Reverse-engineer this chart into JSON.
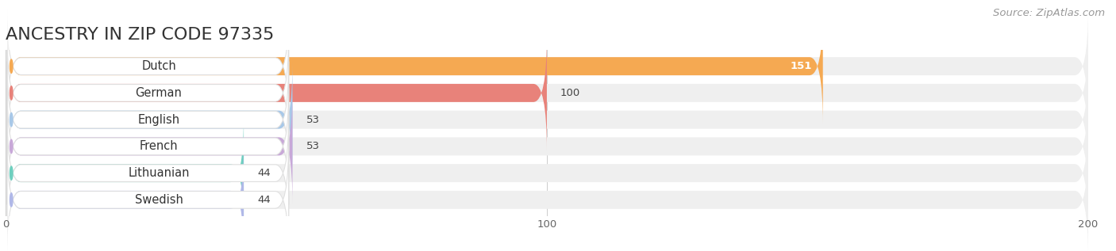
{
  "title": "ANCESTRY IN ZIP CODE 97335",
  "source": "Source: ZipAtlas.com",
  "categories": [
    "Dutch",
    "German",
    "English",
    "French",
    "Lithuanian",
    "Swedish"
  ],
  "values": [
    151,
    100,
    53,
    53,
    44,
    44
  ],
  "bar_colors": [
    "#F5A952",
    "#E8827A",
    "#A8C8E8",
    "#C8A8D8",
    "#6ECFBF",
    "#B0B8E8"
  ],
  "bg_bar_color": "#EFEFEF",
  "xlim": [
    0,
    200
  ],
  "xticks": [
    0,
    100,
    200
  ],
  "title_fontsize": 16,
  "value_fontsize": 9.5,
  "label_fontsize": 10.5,
  "source_fontsize": 9.5
}
